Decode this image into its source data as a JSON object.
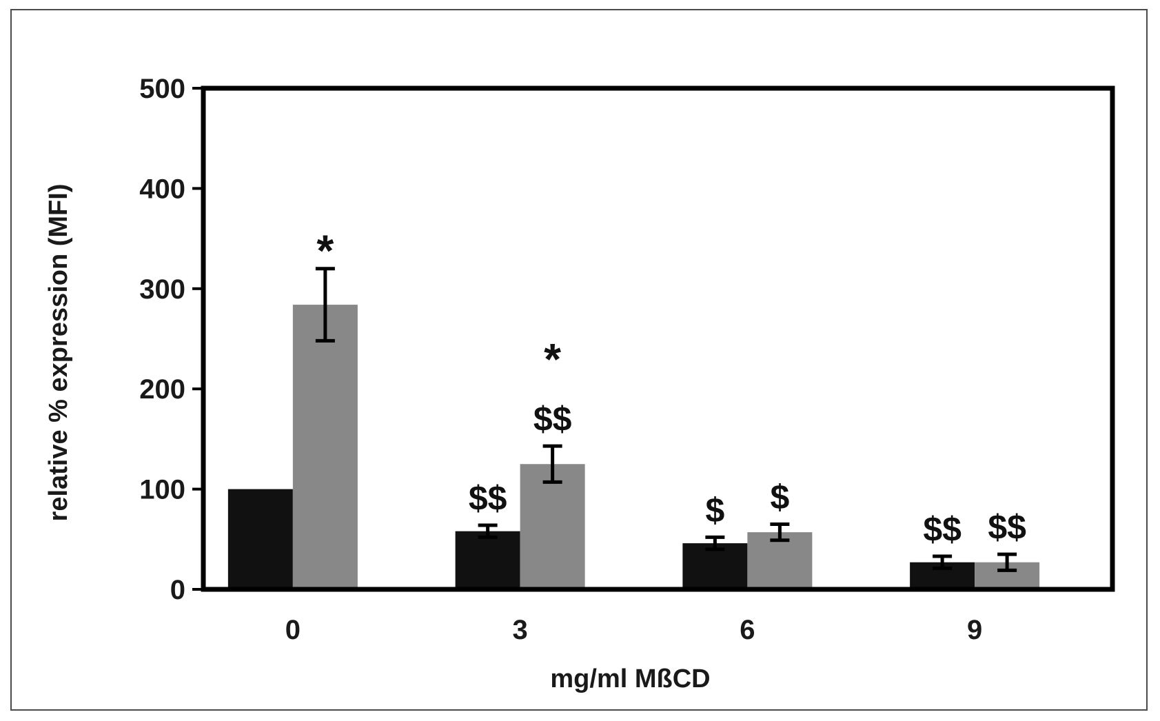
{
  "chart_data": {
    "type": "bar",
    "categories": [
      "0",
      "3",
      "6",
      "9"
    ],
    "xlabel": "mg/ml  MßCD",
    "ylabel": "relative % expression (MFI)",
    "ylim": [
      0,
      500
    ],
    "yticks": [
      "0",
      "100",
      "200",
      "300",
      "400",
      "500"
    ],
    "grid": false,
    "legend": "none",
    "series": [
      {
        "values": [
          100,
          58,
          46,
          27
        ],
        "errors": [
          0,
          6,
          6,
          6
        ],
        "color": "#111111",
        "annotations": [
          "",
          "$$",
          "$",
          "$$"
        ]
      },
      {
        "values": [
          284,
          125,
          57,
          27
        ],
        "errors": [
          36,
          18,
          8,
          8
        ],
        "color": "#888888",
        "annotations": [
          "*",
          "*|$$",
          "$",
          "$$"
        ]
      }
    ]
  }
}
